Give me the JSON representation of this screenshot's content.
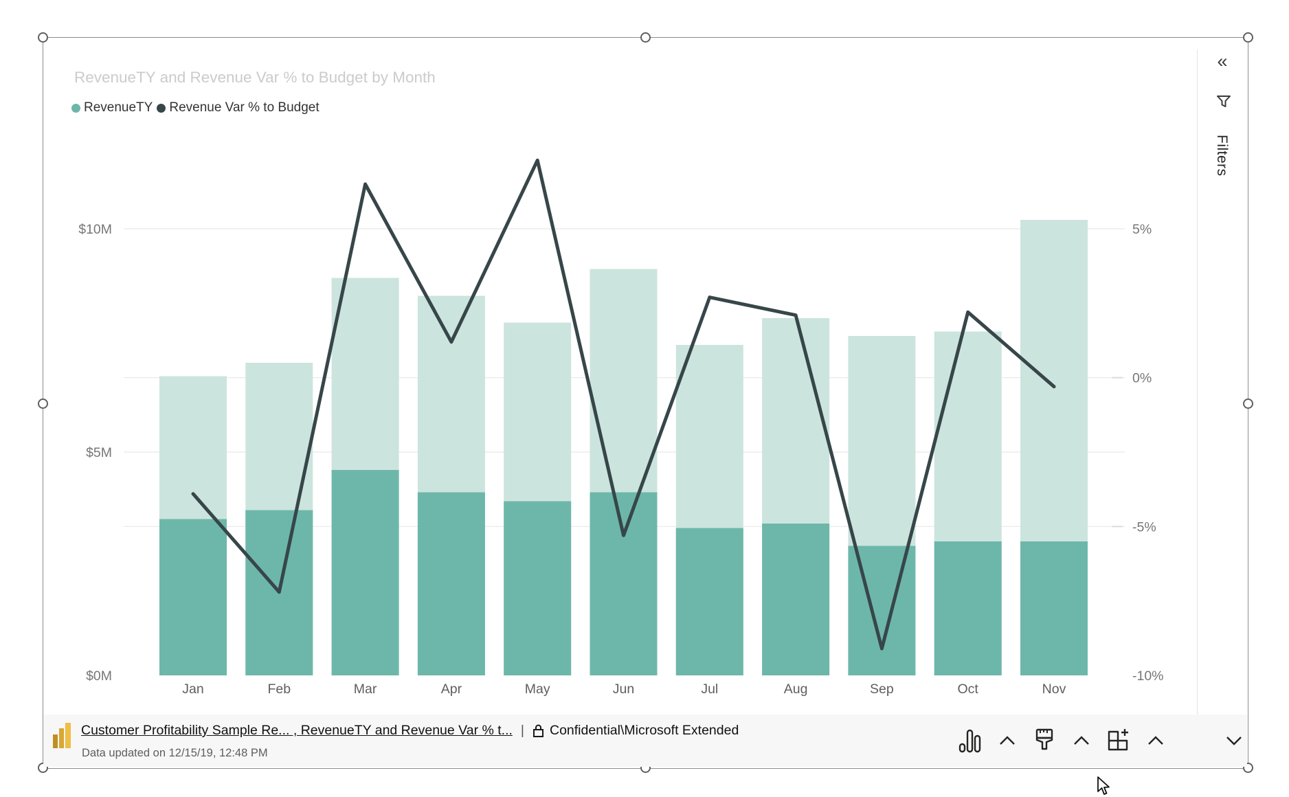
{
  "title": "RevenueTY and Revenue Var % to Budget by Month",
  "legend": [
    {
      "label": "RevenueTY",
      "color": "#6DB7AA"
    },
    {
      "label": "Revenue Var % to Budget",
      "color": "#374649"
    }
  ],
  "chart_data": {
    "type": "combo: stacked column + line (dual axis)",
    "title": "RevenueTY and Revenue Var % to Budget by Month",
    "categories": [
      "Jan",
      "Feb",
      "Mar",
      "Apr",
      "May",
      "Jun",
      "Jul",
      "Aug",
      "Sep",
      "Oct",
      "Nov"
    ],
    "series": [
      {
        "name": "RevenueTY (total)",
        "type": "bar",
        "unit": "$M",
        "color": "#CCE4DE",
        "values": [
          6.7,
          7.0,
          8.9,
          8.5,
          7.9,
          9.1,
          7.4,
          8.0,
          7.6,
          7.7,
          10.2
        ]
      },
      {
        "name": "RevenueTY (highlighted)",
        "type": "bar",
        "unit": "$M",
        "color": "#6DB7AA",
        "values": [
          3.5,
          3.7,
          4.6,
          4.1,
          3.9,
          4.1,
          3.3,
          3.4,
          2.9,
          3.0,
          3.0
        ]
      },
      {
        "name": "Revenue Var % to Budget",
        "type": "line",
        "unit": "%",
        "color": "#374649",
        "values": [
          -3.9,
          -7.2,
          6.5,
          1.2,
          7.3,
          -5.3,
          2.7,
          2.1,
          -9.1,
          2.2,
          -0.3
        ]
      }
    ],
    "y_left": {
      "ticks": [
        "$0M",
        "$5M",
        "$10M"
      ],
      "tick_values": [
        0,
        5,
        10
      ],
      "range": [
        0,
        11.7
      ]
    },
    "y_right": {
      "ticks": [
        "5%",
        "0%",
        "-5%",
        "-10%"
      ],
      "tick_values": [
        5,
        0,
        -5,
        -10
      ],
      "range": [
        -10,
        7.5
      ]
    },
    "grid": true,
    "legend_position": "top-left"
  },
  "filters_pane": {
    "title": "Filters",
    "collapse_glyph": "«",
    "filter_icon": "filter-funnel-icon"
  },
  "footer": {
    "logo": "power-bi-logo",
    "link_text": "Customer Profitability Sample Re... , RevenueTY and Revenue Var % t...",
    "separator": "|",
    "lock_icon": "padlock-icon",
    "sensitivity_label": "Confidential\\Microsoft Extended",
    "updated_text": "Data updated on 12/15/19, 12:48 PM",
    "icons": [
      "column-chart-icon",
      "chevron-up-icon",
      "paint-brush-icon",
      "chevron-up-icon",
      "grid-plus-icon",
      "chevron-up-icon",
      "chevron-down-icon"
    ]
  }
}
